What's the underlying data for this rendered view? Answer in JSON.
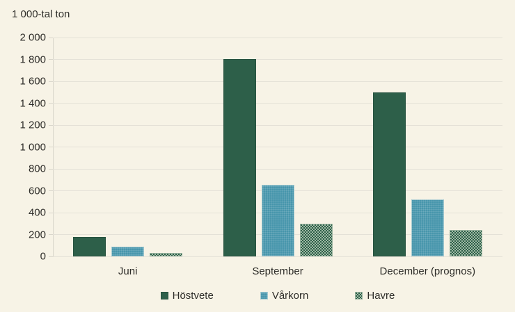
{
  "colors": {
    "background": "#f7f3e6",
    "gridline": "#e4e1d7",
    "text": "#2e2d29",
    "hostvete_green": "#2d5f49",
    "varkorn_teal": "#4796ac",
    "havre_checker_light": "#9eb8a3"
  },
  "chart_data": {
    "type": "bar",
    "title": "",
    "ylabel": "1 000-tal ton",
    "xlabel": "",
    "categories": [
      "Juni",
      "September",
      "December (prognos)"
    ],
    "series": [
      {
        "name": "Höstvete",
        "style": "solid-green",
        "color": "#2d5f49",
        "values": [
          180,
          1805,
          1500
        ]
      },
      {
        "name": "Vårkorn",
        "style": "solid-teal",
        "color": "#4796ac",
        "values": [
          90,
          655,
          520
        ]
      },
      {
        "name": "Havre",
        "style": "checker-green",
        "color": "#2d5f49",
        "values": [
          30,
          300,
          240
        ]
      }
    ],
    "ylim": [
      0,
      2000
    ],
    "ytick_step": 200,
    "yticks": [
      {
        "value": 0,
        "label": "0"
      },
      {
        "value": 200,
        "label": "200"
      },
      {
        "value": 400,
        "label": "400"
      },
      {
        "value": 600,
        "label": "600"
      },
      {
        "value": 800,
        "label": "800"
      },
      {
        "value": 1000,
        "label": "1 000"
      },
      {
        "value": 1200,
        "label": "1 200"
      },
      {
        "value": 1400,
        "label": "1 400"
      },
      {
        "value": 1600,
        "label": "1 600"
      },
      {
        "value": 1800,
        "label": "1 800"
      },
      {
        "value": 2000,
        "label": "2 000"
      }
    ],
    "grid": true,
    "legend_position": "bottom"
  }
}
